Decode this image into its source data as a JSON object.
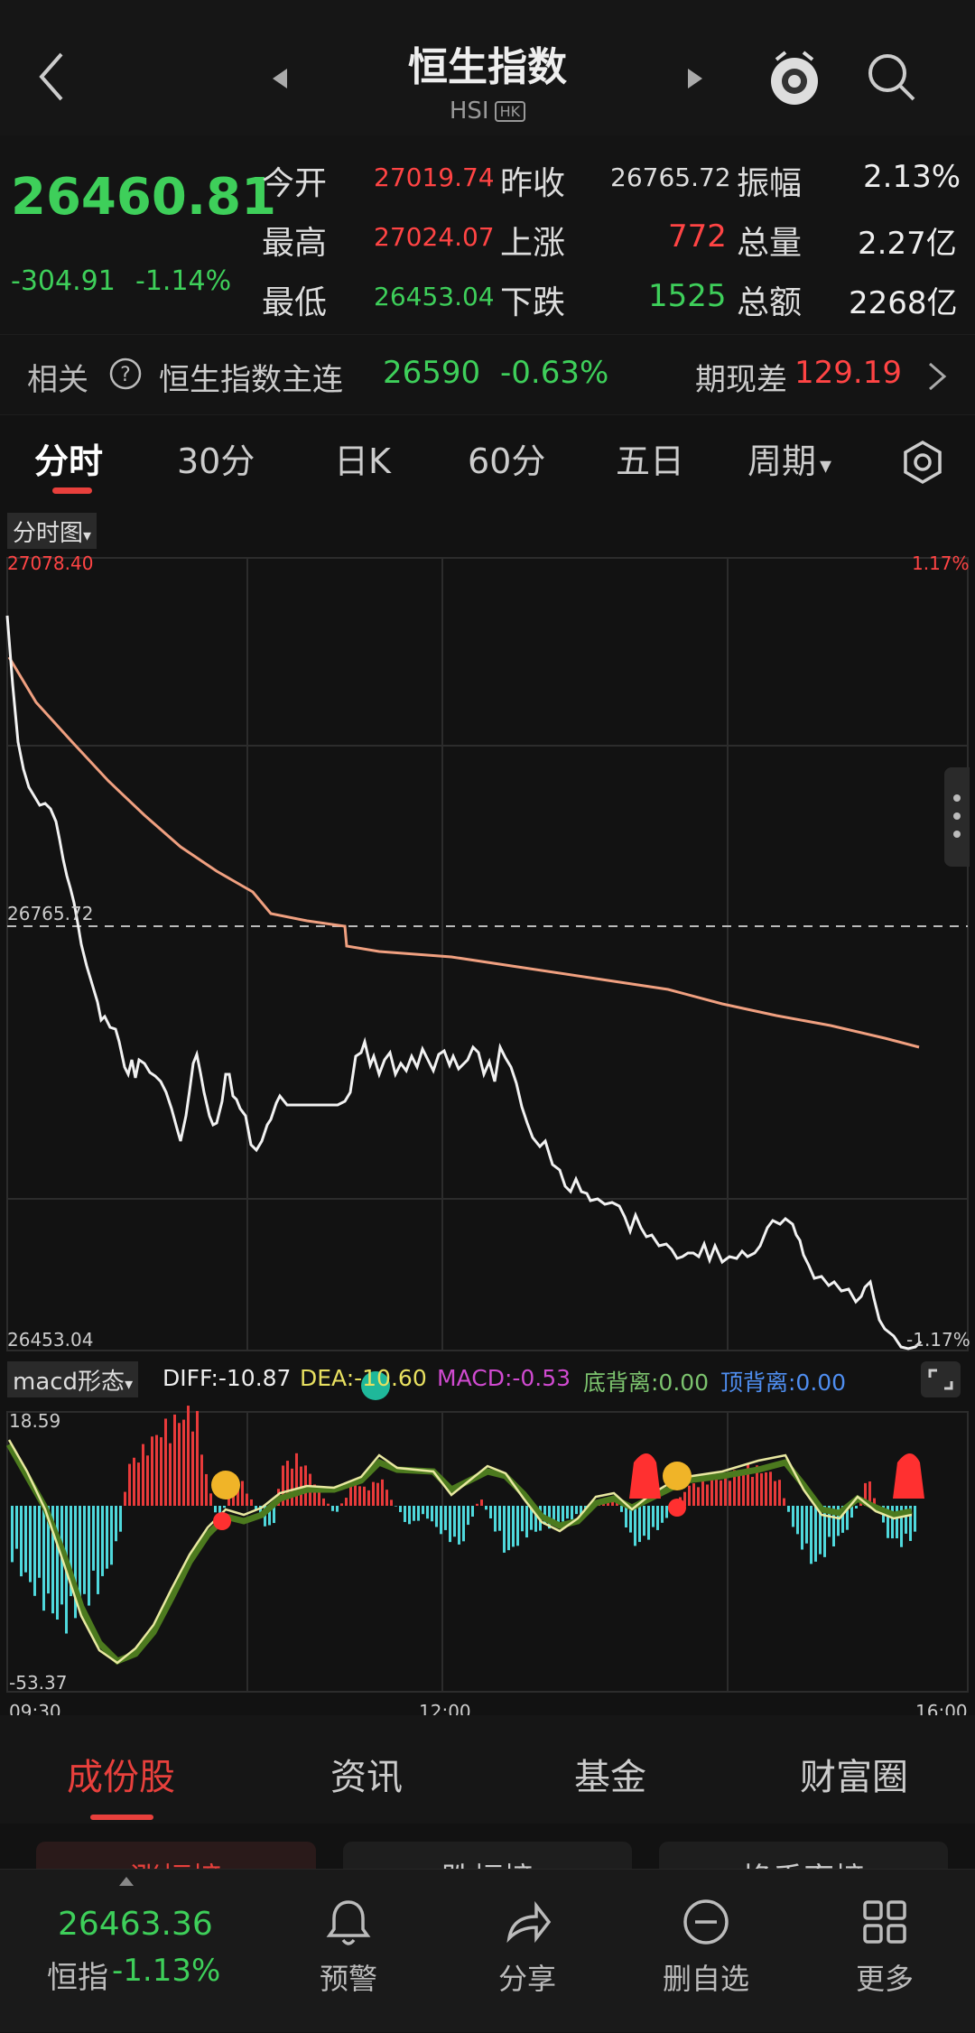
{
  "header": {
    "title": "恒生指数",
    "subtitle": "HSI",
    "market_badge": "HK"
  },
  "quote": {
    "price": "26460.81",
    "change": "-304.91",
    "change_pct": "-1.14%",
    "open_label": "今开",
    "open": "27019.74",
    "high_label": "最高",
    "high": "27024.07",
    "low_label": "最低",
    "low": "26453.04",
    "prev_close_label": "昨收",
    "prev_close": "26765.72",
    "rise_label": "上涨",
    "rise": "772",
    "fall_label": "下跌",
    "fall": "1525",
    "amplitude_label": "振幅",
    "amplitude": "2.13%",
    "volume_label": "总量",
    "volume": "2.27亿",
    "turnover_label": "总额",
    "turnover": "2268亿"
  },
  "related": {
    "label": "相关",
    "name": "恒生指数主连",
    "price": "26590",
    "pct": "-0.63%",
    "basis_label": "期现差",
    "basis": "129.19"
  },
  "tabs": [
    "分时",
    "30分",
    "日K",
    "60分",
    "五日",
    "周期"
  ],
  "chart": {
    "selector": "分时图",
    "top_price": "27078.40",
    "top_pct": "1.17%",
    "mid_price": "26765.72",
    "bottom_price": "26453.04",
    "bottom_pct": "-1.17%",
    "times": [
      "09:30",
      "12:00",
      "16:00"
    ]
  },
  "macd": {
    "selector": "macd形态",
    "diff": "DIFF:-10.87",
    "dea": "DEA:-10.60",
    "macd": "MACD:-0.53",
    "bottom_div": "底背离:0.00",
    "top_div": "顶背离:0.00",
    "max": "18.59",
    "min": "-53.37"
  },
  "bottom_tabs": [
    "成份股",
    "资讯",
    "基金",
    "财富圈"
  ],
  "sub_tabs": [
    "涨幅榜",
    "跌幅榜",
    "换手率榜"
  ],
  "footer": {
    "index_price": "26463.36",
    "index_name": "恒指",
    "index_pct": "-1.13%",
    "buttons": [
      "预警",
      "分享",
      "删自选",
      "更多"
    ]
  },
  "colors": {
    "up": "#ff4444",
    "down": "#3ecf5a",
    "avg_line": "#f0a080",
    "accent": "#e8403c"
  }
}
